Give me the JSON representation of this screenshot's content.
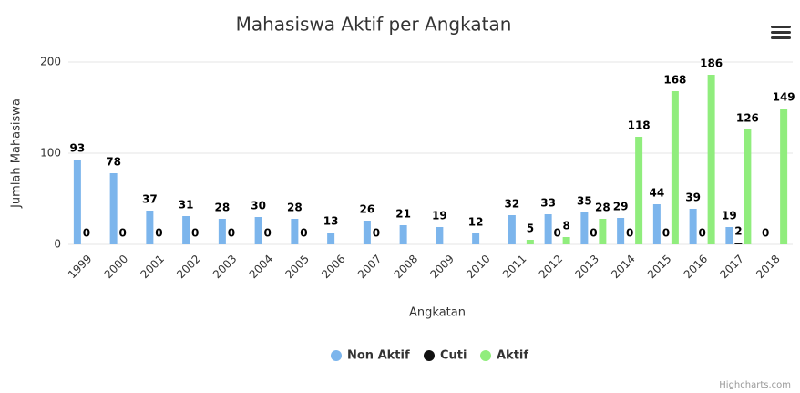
{
  "chart_data": {
    "type": "bar",
    "title": "Mahasiswa Aktif per Angkatan",
    "xlabel": "Angkatan",
    "ylabel": "Jumlah Mahasiswa",
    "categories": [
      "1999",
      "2000",
      "2001",
      "2002",
      "2003",
      "2004",
      "2005",
      "2006",
      "2007",
      "2008",
      "2009",
      "2010",
      "2011",
      "2012",
      "2013",
      "2014",
      "2015",
      "2016",
      "2017",
      "2018"
    ],
    "series": [
      {
        "name": "Non Aktif",
        "color": "#7cb5ec",
        "values": [
          93,
          78,
          37,
          31,
          28,
          30,
          28,
          13,
          26,
          21,
          19,
          12,
          32,
          33,
          35,
          29,
          44,
          39,
          19,
          0
        ]
      },
      {
        "name": "Cuti",
        "color": "#111111",
        "values": [
          0,
          0,
          0,
          0,
          0,
          0,
          0,
          null,
          0,
          null,
          null,
          null,
          null,
          0,
          0,
          0,
          0,
          0,
          2,
          null
        ]
      },
      {
        "name": "Aktif",
        "color": "#90ed7d",
        "values": [
          null,
          null,
          null,
          null,
          null,
          null,
          null,
          null,
          null,
          null,
          null,
          null,
          5,
          8,
          28,
          118,
          168,
          186,
          126,
          149
        ]
      }
    ],
    "ylim": [
      0,
      200
    ],
    "yticks": [
      0,
      100,
      200
    ],
    "grid": true,
    "credits": "Highcharts.com"
  }
}
